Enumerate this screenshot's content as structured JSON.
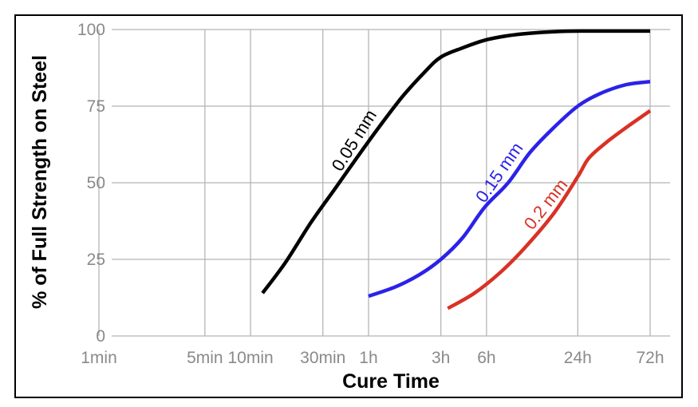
{
  "chart_data": {
    "type": "line",
    "title": "",
    "xlabel": "Cure Time",
    "ylabel": "% of Full Strength on Steel",
    "x_scale": "log",
    "x_unit": "minutes",
    "xlim": [
      1,
      4320
    ],
    "ylim": [
      0,
      100
    ],
    "grid": true,
    "x_ticks": [
      {
        "value": 1,
        "label": "1min"
      },
      {
        "value": 5,
        "label": "5min"
      },
      {
        "value": 10,
        "label": "10min"
      },
      {
        "value": 30,
        "label": "30min"
      },
      {
        "value": 60,
        "label": "1h"
      },
      {
        "value": 180,
        "label": "3h"
      },
      {
        "value": 360,
        "label": "6h"
      },
      {
        "value": 1440,
        "label": "24h"
      },
      {
        "value": 4320,
        "label": "72h"
      }
    ],
    "y_ticks": [
      {
        "value": 0,
        "label": "0"
      },
      {
        "value": 25,
        "label": "25"
      },
      {
        "value": 50,
        "label": "50"
      },
      {
        "value": 75,
        "label": "75"
      },
      {
        "value": 100,
        "label": "100"
      }
    ],
    "series": [
      {
        "name": "0.05 mm",
        "color": "#000000",
        "points": [
          [
            12,
            14
          ],
          [
            17,
            24
          ],
          [
            25,
            37
          ],
          [
            36,
            48
          ],
          [
            50,
            58
          ],
          [
            70,
            68
          ],
          [
            100,
            78
          ],
          [
            140,
            86
          ],
          [
            180,
            91
          ],
          [
            250,
            94
          ],
          [
            350,
            96.5
          ],
          [
            500,
            98
          ],
          [
            700,
            98.8
          ],
          [
            1000,
            99.3
          ],
          [
            1500,
            99.5
          ],
          [
            2500,
            99.5
          ],
          [
            4320,
            99.5
          ]
        ]
      },
      {
        "name": "0.15 mm",
        "color": "#2b22e8",
        "points": [
          [
            60,
            13
          ],
          [
            90,
            16
          ],
          [
            130,
            20
          ],
          [
            180,
            25
          ],
          [
            250,
            32
          ],
          [
            350,
            42
          ],
          [
            500,
            50
          ],
          [
            700,
            60
          ],
          [
            1000,
            68
          ],
          [
            1440,
            75
          ],
          [
            2000,
            79
          ],
          [
            3000,
            82
          ],
          [
            4320,
            83
          ]
        ]
      },
      {
        "name": "0.2 mm",
        "color": "#d83226",
        "points": [
          [
            200,
            9
          ],
          [
            300,
            14
          ],
          [
            450,
            21
          ],
          [
            650,
            29
          ],
          [
            1000,
            40
          ],
          [
            1440,
            52
          ],
          [
            1700,
            58
          ],
          [
            2200,
            63
          ],
          [
            3000,
            68
          ],
          [
            4320,
            73.5
          ]
        ]
      }
    ]
  }
}
